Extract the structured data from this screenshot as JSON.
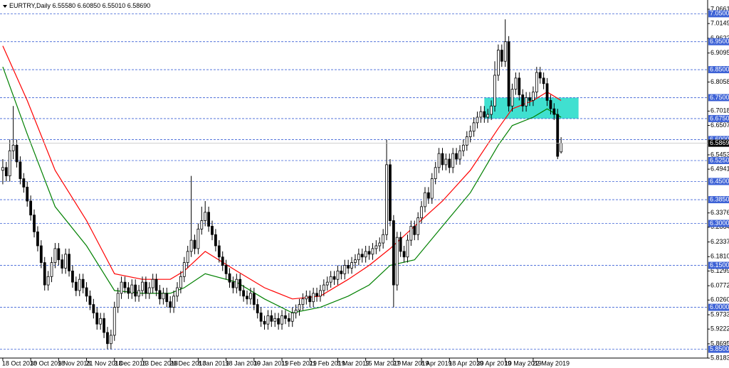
{
  "chart_data": {
    "type": "candlestick",
    "title": "EURTRY,Daily",
    "header_values": [
      "6.55580",
      "6.60850",
      "6.55010",
      "6.58690"
    ],
    "open": [
      6.49,
      6.5,
      6.47,
      6.56,
      6.58,
      6.52,
      6.46,
      6.43,
      6.38,
      6.33,
      6.27,
      6.22,
      6.16,
      6.08,
      6.11,
      6.16,
      6.21,
      6.17,
      6.14,
      6.19,
      6.13,
      6.09,
      6.06,
      6.1,
      6.07,
      6.04,
      6.01,
      5.98,
      5.94,
      5.96,
      5.91,
      5.87,
      5.9,
      6.0,
      6.05,
      6.09,
      6.07,
      6.05,
      6.08,
      6.04,
      6.06,
      6.09,
      6.05,
      6.07,
      6.1,
      6.06,
      6.03,
      6.05,
      6.02,
      6.0,
      6.04,
      6.07,
      6.11,
      6.16,
      6.2,
      6.24,
      6.21,
      6.28,
      6.31,
      6.34,
      6.29,
      6.26,
      6.22,
      6.18,
      6.15,
      6.12,
      6.09,
      6.07,
      6.1,
      6.06,
      6.04,
      6.03,
      6.05,
      6.01,
      5.98,
      5.95,
      5.94,
      5.97,
      5.95,
      5.96,
      5.94,
      5.97,
      5.96,
      5.95,
      5.98,
      5.99,
      6.01,
      6.03,
      6.04,
      6.02,
      6.05,
      6.04,
      6.06,
      6.08,
      6.09,
      6.11,
      6.1,
      6.13,
      6.12,
      6.15,
      6.14,
      6.16,
      6.17,
      6.19,
      6.18,
      6.2,
      6.19,
      6.21,
      6.22,
      6.23,
      6.26,
      6.51,
      6.31,
      6.08,
      6.25,
      6.2,
      6.18,
      6.24,
      6.29,
      6.26,
      6.32,
      6.36,
      6.41,
      6.39,
      6.46,
      6.5,
      6.55,
      6.51,
      6.53,
      6.5,
      6.55,
      6.53,
      6.56,
      6.58,
      6.61,
      6.63,
      6.66,
      6.68,
      6.7,
      6.68,
      6.69,
      6.72,
      6.83,
      6.92,
      6.88,
      6.95,
      6.72,
      6.78,
      6.82,
      6.76,
      6.72,
      6.75,
      6.74,
      6.77,
      6.84,
      6.82,
      6.8,
      6.74,
      6.71,
      6.69,
      6.5558
    ],
    "high": [
      6.53,
      6.52,
      6.6,
      6.72,
      6.6,
      6.54,
      6.48,
      6.45,
      6.4,
      6.35,
      6.29,
      6.24,
      6.18,
      6.13,
      6.18,
      6.23,
      6.23,
      6.19,
      6.21,
      6.21,
      6.15,
      6.11,
      6.12,
      6.12,
      6.09,
      6.06,
      6.03,
      6.0,
      5.98,
      5.98,
      5.93,
      5.92,
      6.02,
      6.07,
      6.11,
      6.11,
      6.09,
      6.1,
      6.1,
      6.08,
      6.11,
      6.11,
      6.09,
      6.12,
      6.12,
      6.08,
      6.07,
      6.07,
      6.04,
      6.06,
      6.09,
      6.13,
      6.18,
      6.22,
      6.47,
      6.26,
      6.3,
      6.36,
      6.38,
      6.36,
      6.31,
      6.28,
      6.24,
      6.2,
      6.17,
      6.14,
      6.11,
      6.12,
      6.12,
      6.08,
      6.06,
      6.07,
      6.07,
      6.03,
      6.0,
      5.97,
      5.99,
      5.99,
      5.98,
      5.98,
      5.99,
      5.99,
      5.98,
      6.0,
      6.01,
      6.03,
      6.05,
      6.06,
      6.06,
      6.07,
      6.07,
      6.08,
      6.1,
      6.11,
      6.13,
      6.13,
      6.15,
      6.15,
      6.17,
      6.17,
      6.18,
      6.19,
      6.21,
      6.21,
      6.22,
      6.22,
      6.23,
      6.24,
      6.25,
      6.28,
      6.6,
      6.53,
      6.33,
      6.27,
      6.27,
      6.22,
      6.26,
      6.31,
      6.31,
      6.34,
      6.38,
      6.43,
      6.43,
      6.48,
      6.52,
      6.57,
      6.57,
      6.55,
      6.55,
      6.57,
      6.57,
      6.58,
      6.6,
      6.63,
      6.65,
      6.68,
      6.7,
      6.72,
      6.72,
      6.71,
      6.74,
      6.88,
      6.94,
      6.94,
      7.03,
      6.97,
      6.8,
      6.84,
      6.84,
      6.78,
      6.77,
      6.77,
      6.79,
      6.86,
      6.86,
      6.84,
      6.82,
      6.76,
      6.73,
      6.71,
      6.6085
    ],
    "low": [
      6.44,
      6.45,
      6.45,
      6.53,
      6.5,
      6.44,
      6.41,
      6.36,
      6.31,
      6.25,
      6.2,
      6.14,
      6.06,
      6.06,
      6.09,
      6.14,
      6.15,
      6.12,
      6.12,
      6.11,
      6.07,
      6.04,
      6.04,
      6.05,
      6.02,
      5.99,
      5.96,
      5.92,
      5.92,
      5.89,
      5.85,
      5.85,
      5.88,
      5.98,
      6.03,
      6.05,
      6.03,
      6.03,
      6.02,
      6.02,
      6.04,
      6.03,
      6.03,
      6.05,
      6.04,
      6.01,
      6.01,
      6.0,
      5.98,
      5.98,
      6.02,
      6.05,
      6.09,
      6.14,
      6.18,
      6.19,
      6.19,
      6.26,
      6.29,
      6.27,
      6.24,
      6.2,
      6.16,
      6.13,
      6.1,
      6.07,
      6.05,
      6.05,
      6.04,
      6.02,
      6.01,
      6.01,
      5.99,
      5.96,
      5.93,
      5.92,
      5.92,
      5.93,
      5.93,
      5.92,
      5.92,
      5.94,
      5.93,
      5.93,
      5.96,
      5.97,
      5.99,
      6.01,
      6.0,
      6.0,
      6.02,
      6.02,
      6.04,
      6.06,
      6.07,
      6.08,
      6.08,
      6.1,
      6.1,
      6.12,
      6.12,
      6.14,
      6.15,
      6.16,
      6.16,
      6.17,
      6.17,
      6.19,
      6.2,
      6.21,
      6.24,
      6.29,
      6.0,
      6.06,
      6.18,
      6.16,
      6.16,
      6.22,
      6.24,
      6.24,
      6.3,
      6.34,
      6.37,
      6.37,
      6.44,
      6.48,
      6.49,
      6.49,
      6.48,
      6.48,
      6.51,
      6.51,
      6.54,
      6.56,
      6.59,
      6.61,
      6.64,
      6.66,
      6.66,
      6.66,
      6.67,
      6.7,
      6.81,
      6.86,
      6.86,
      6.7,
      6.7,
      6.76,
      6.74,
      6.7,
      6.7,
      6.72,
      6.72,
      6.75,
      6.8,
      6.78,
      6.72,
      6.69,
      6.67,
      6.53,
      6.5501
    ],
    "close": [
      6.5,
      6.47,
      6.56,
      6.58,
      6.52,
      6.46,
      6.43,
      6.38,
      6.33,
      6.27,
      6.22,
      6.16,
      6.08,
      6.11,
      6.16,
      6.21,
      6.17,
      6.14,
      6.19,
      6.13,
      6.09,
      6.06,
      6.1,
      6.07,
      6.04,
      6.01,
      5.98,
      5.94,
      5.96,
      5.91,
      5.87,
      5.9,
      6.0,
      6.05,
      6.09,
      6.07,
      6.05,
      6.08,
      6.04,
      6.06,
      6.09,
      6.05,
      6.07,
      6.1,
      6.06,
      6.03,
      6.05,
      6.02,
      6.0,
      6.04,
      6.07,
      6.11,
      6.16,
      6.2,
      6.24,
      6.21,
      6.28,
      6.31,
      6.34,
      6.29,
      6.26,
      6.22,
      6.18,
      6.15,
      6.12,
      6.09,
      6.07,
      6.1,
      6.06,
      6.04,
      6.03,
      6.05,
      6.01,
      5.98,
      5.95,
      5.94,
      5.97,
      5.95,
      5.96,
      5.94,
      5.97,
      5.96,
      5.95,
      5.98,
      5.99,
      6.01,
      6.03,
      6.04,
      6.02,
      6.05,
      6.04,
      6.06,
      6.08,
      6.09,
      6.11,
      6.1,
      6.13,
      6.12,
      6.15,
      6.14,
      6.16,
      6.17,
      6.19,
      6.18,
      6.2,
      6.19,
      6.21,
      6.22,
      6.23,
      6.26,
      6.51,
      6.31,
      6.08,
      6.25,
      6.2,
      6.18,
      6.24,
      6.29,
      6.26,
      6.32,
      6.36,
      6.41,
      6.39,
      6.46,
      6.5,
      6.55,
      6.51,
      6.53,
      6.5,
      6.55,
      6.53,
      6.56,
      6.58,
      6.61,
      6.63,
      6.66,
      6.68,
      6.7,
      6.68,
      6.69,
      6.72,
      6.83,
      6.92,
      6.88,
      6.95,
      6.72,
      6.78,
      6.82,
      6.76,
      6.72,
      6.75,
      6.74,
      6.77,
      6.84,
      6.82,
      6.8,
      6.74,
      6.71,
      6.69,
      6.54,
      6.5869
    ],
    "up_color": "#ffffff",
    "down_color": "#000000",
    "xlim": [
      -0.8,
      202
    ],
    "xticks": [
      {
        "value": 0,
        "label": "18 Oct 2018"
      },
      {
        "value": 8,
        "label": "30 Oct 2018"
      },
      {
        "value": 16,
        "label": "9 Nov 2018"
      },
      {
        "value": 24,
        "label": "21 Nov 2018"
      },
      {
        "value": 32,
        "label": "3 Dec 2018"
      },
      {
        "value": 40,
        "label": "13 Dec 2018"
      },
      {
        "value": 48,
        "label": "26 Dec 2018"
      },
      {
        "value": 56,
        "label": "8 Jan 2019"
      },
      {
        "value": 64,
        "label": "18 Jan 2019"
      },
      {
        "value": 72,
        "label": "30 Jan 2019"
      },
      {
        "value": 80,
        "label": "11 Feb 2019"
      },
      {
        "value": 88,
        "label": "21 Feb 2019"
      },
      {
        "value": 96,
        "label": "5 Mar 2019"
      },
      {
        "value": 104,
        "label": "15 Mar 2019"
      },
      {
        "value": 112,
        "label": "27 Mar 2019"
      },
      {
        "value": 120,
        "label": "8 Apr 2019"
      },
      {
        "value": 128,
        "label": "18 Apr 2019"
      },
      {
        "value": 136,
        "label": "30 Apr 2019"
      },
      {
        "value": 144,
        "label": "10 May 2019"
      },
      {
        "value": 152,
        "label": "22 May 2019"
      }
    ],
    "ylim": [
      5.8185,
      7.0941
    ],
    "yticks": [
      {
        "value": 7.0661,
        "label": "7.06610"
      },
      {
        "value": 7.01495,
        "label": "7.01495"
      },
      {
        "value": 6.96225,
        "label": "6.96225"
      },
      {
        "value": 6.90955,
        "label": "6.90955"
      },
      {
        "value": 6.80585,
        "label": "6.80585"
      },
      {
        "value": 6.70185,
        "label": "6.70185"
      },
      {
        "value": 6.6507,
        "label": "6.65070"
      },
      {
        "value": 6.5453,
        "label": "6.54530"
      },
      {
        "value": 6.49415,
        "label": "6.49415"
      },
      {
        "value": 6.3376,
        "label": "6.33760"
      },
      {
        "value": 6.28645,
        "label": "6.28645"
      },
      {
        "value": 6.23375,
        "label": "6.23375"
      },
      {
        "value": 6.18105,
        "label": "6.18105"
      },
      {
        "value": 6.1299,
        "label": "6.12990"
      },
      {
        "value": 6.0772,
        "label": "6.07720"
      },
      {
        "value": 6.02605,
        "label": "6.02605"
      },
      {
        "value": 5.97335,
        "label": "5.97335"
      },
      {
        "value": 5.9222,
        "label": "5.92220"
      },
      {
        "value": 5.8695,
        "label": "5.86950"
      },
      {
        "value": 5.81835,
        "label": "5.81835"
      }
    ],
    "levels": [
      {
        "value": 7.05,
        "label": "7.05000"
      },
      {
        "value": 6.95,
        "label": "6.95000"
      },
      {
        "value": 6.85,
        "label": "6.85000"
      },
      {
        "value": 6.75,
        "label": "6.75000"
      },
      {
        "value": 6.675,
        "label": "6.67500"
      },
      {
        "value": 6.6,
        "label": "6.60000"
      },
      {
        "value": 6.525,
        "label": "6.52500"
      },
      {
        "value": 6.45,
        "label": "6.45000"
      },
      {
        "value": 6.385,
        "label": "6.38500"
      },
      {
        "value": 6.3,
        "label": "6.30000"
      },
      {
        "value": 6.15,
        "label": "6.15000"
      },
      {
        "value": 6.0,
        "label": "6.00000"
      },
      {
        "value": 5.85,
        "label": "5.85000"
      }
    ],
    "level_color": "#3d62d6",
    "last_price": {
      "value": 6.5869,
      "label": "6.58690"
    },
    "moving_averages": [
      {
        "color": "#ff0000",
        "x": [
          0,
          7,
          15,
          24,
          32,
          40,
          48,
          52,
          58,
          67,
          75,
          83,
          91,
          99,
          105,
          111,
          118,
          126,
          134,
          142,
          146,
          152,
          156,
          160
        ],
        "values": [
          6.935,
          6.74,
          6.49,
          6.31,
          6.12,
          6.1,
          6.1,
          6.13,
          6.2,
          6.13,
          6.07,
          6.03,
          6.04,
          6.1,
          6.15,
          6.21,
          6.29,
          6.38,
          6.49,
          6.64,
          6.71,
          6.74,
          6.77,
          6.74
        ]
      },
      {
        "color": "#008000",
        "x": [
          0,
          7,
          15,
          24,
          32,
          40,
          48,
          52,
          58,
          67,
          75,
          83,
          91,
          99,
          105,
          111,
          118,
          126,
          134,
          142,
          146,
          152,
          156,
          160
        ],
        "values": [
          6.86,
          6.62,
          6.36,
          6.22,
          6.06,
          6.05,
          6.05,
          6.07,
          6.12,
          6.09,
          6.03,
          5.98,
          6.0,
          6.04,
          6.08,
          6.15,
          6.17,
          6.29,
          6.41,
          6.58,
          6.65,
          6.68,
          6.71,
          6.68
        ]
      }
    ],
    "zone": {
      "x": [
        138,
        165
      ],
      "y": [
        6.675,
        6.75
      ],
      "color": "#40e0d0"
    }
  }
}
